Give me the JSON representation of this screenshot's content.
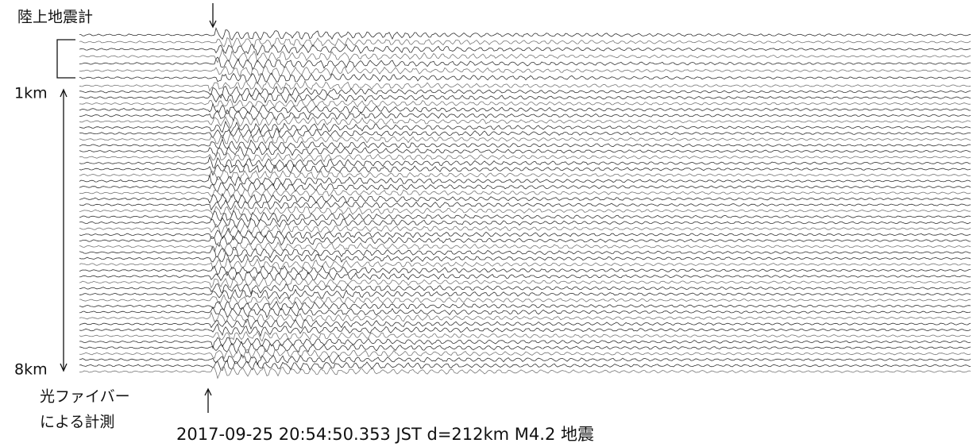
{
  "labels": {
    "land_seismometer": "陸上地震計",
    "top_distance": "1km",
    "bottom_distance": "8km",
    "fiber_line1": "光ファイバー",
    "fiber_line2": "による計測"
  },
  "caption": "2017-09-25 20:54:50.353 JST d=212km M4.2 地震"
}
